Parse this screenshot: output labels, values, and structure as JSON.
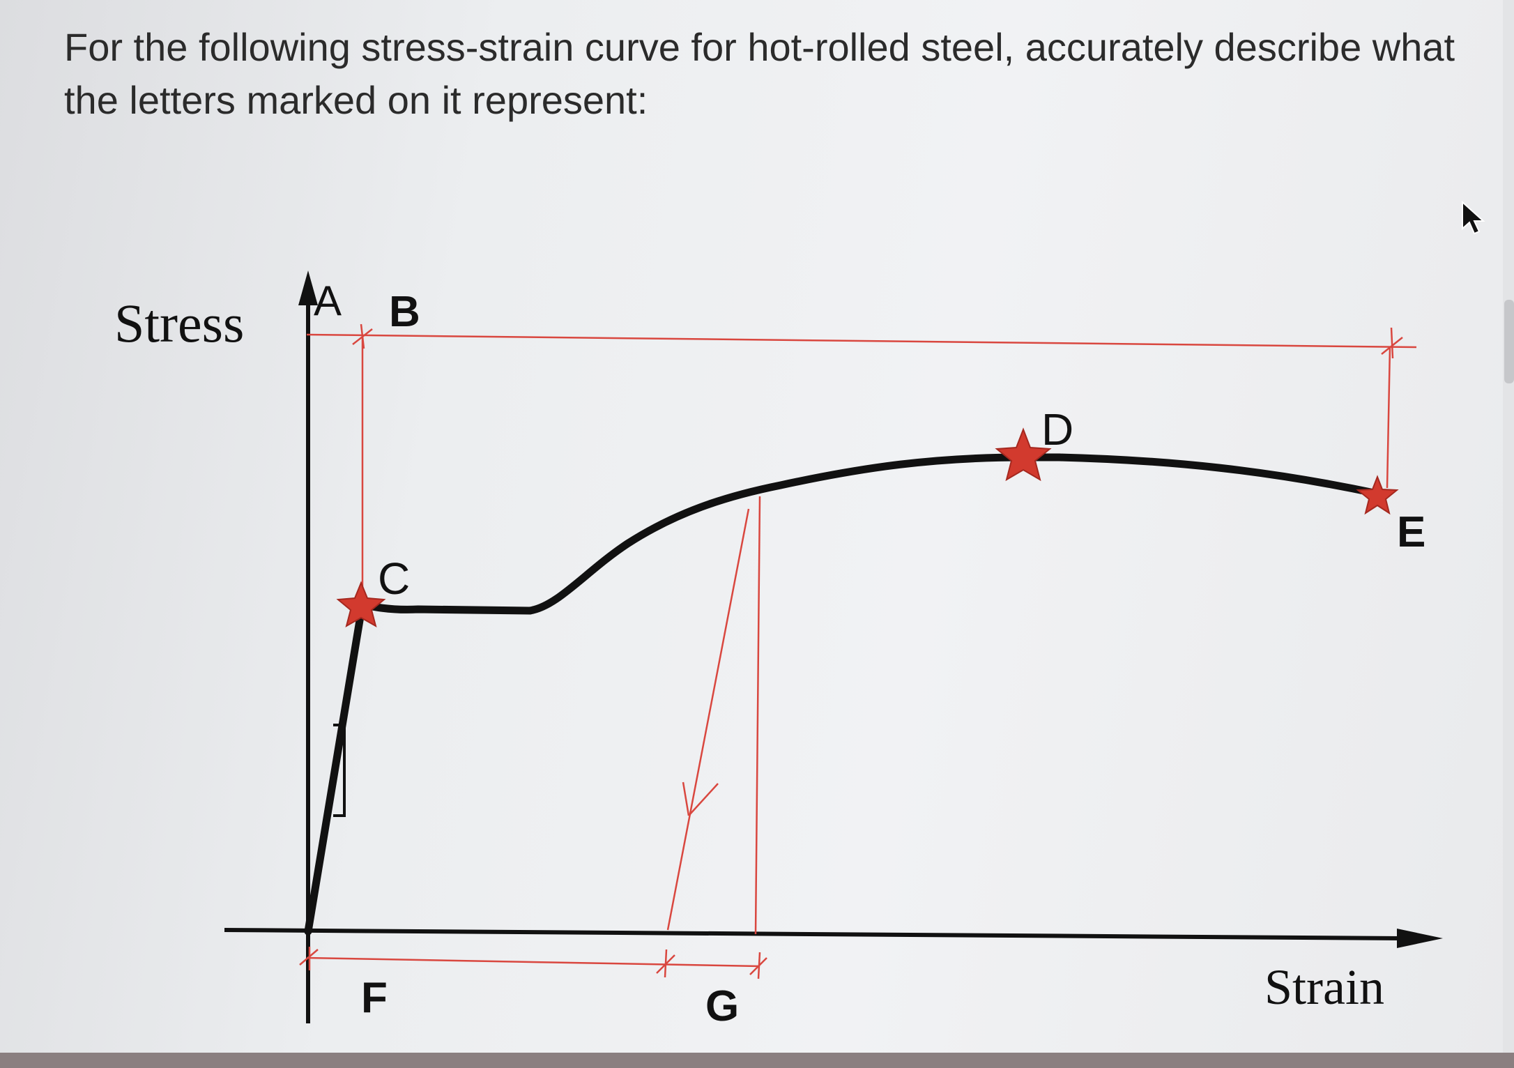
{
  "question": {
    "text": "For the following stress-strain curve for hot-rolled steel, accurately describe what the letters marked on it represent:"
  },
  "diagram": {
    "axes": {
      "y_label": "Stress",
      "x_label": "Strain"
    },
    "point_labels": {
      "A": "A",
      "B": "B",
      "C": "C",
      "D": "D",
      "E": "E",
      "F": "F",
      "G": "G"
    },
    "colors": {
      "curve": "#111111",
      "guide_lines": "#d9473f",
      "markers": "#d23a2e",
      "axes": "#111111"
    }
  }
}
